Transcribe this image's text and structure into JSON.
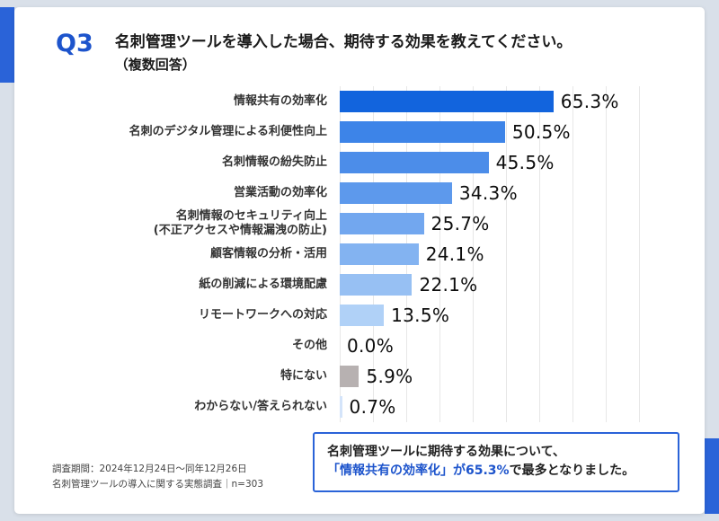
{
  "header": {
    "q_label": "Q3",
    "title": "名刺管理ツールを導入した場合、期待する効果を教えてください。",
    "subtitle": "（複数回答）"
  },
  "chart_data": {
    "type": "bar",
    "orientation": "horizontal",
    "title": "名刺管理ツールを導入した場合、期待する効果",
    "xlim": [
      0,
      100
    ],
    "grid": true,
    "grid_step_percent": 10,
    "categories": [
      "情報共有の効率化",
      "名刺のデジタル管理による利便性向上",
      "名刺情報の紛失防止",
      "営業活動の効率化",
      "名刺情報のセキュリティ向上\n(不正アクセスや情報漏洩の防止)",
      "顧客情報の分析・活用",
      "紙の削減による環境配慮",
      "リモートワークへの対応",
      "その他",
      "特にない",
      "わからない/答えられない"
    ],
    "values": [
      65.3,
      50.5,
      45.5,
      34.3,
      25.7,
      24.1,
      22.1,
      13.5,
      0.0,
      5.9,
      0.7
    ],
    "value_labels": [
      "65.3%",
      "50.5%",
      "45.5%",
      "34.3%",
      "25.7%",
      "24.1%",
      "22.1%",
      "13.5%",
      "0.0%",
      "5.9%",
      "0.7%"
    ],
    "bar_colors": [
      "#1264dd",
      "#3d84e8",
      "#4c8de9",
      "#5d99ec",
      "#72a7ef",
      "#83b3f1",
      "#97c0f3",
      "#b0d1f7",
      "transparent",
      "#b7b1b1",
      "#d4e4fa"
    ]
  },
  "footer": {
    "note_line1": "調査期間：2024年12月24日～同年12月26日",
    "note_line2": "名刺管理ツールの導入に関する実態調査｜n=303"
  },
  "callout": {
    "line1": "名刺管理ツールに期待する効果について、",
    "line2_em": "「情報共有の効率化」が65.3%",
    "line2_rest": "で最多となりました。"
  },
  "colors": {
    "accent_blue": "#2a63d8",
    "q_label_blue": "#1d54cc",
    "background": "#d9e0e9",
    "gray_bar": "#b7b1b1"
  }
}
